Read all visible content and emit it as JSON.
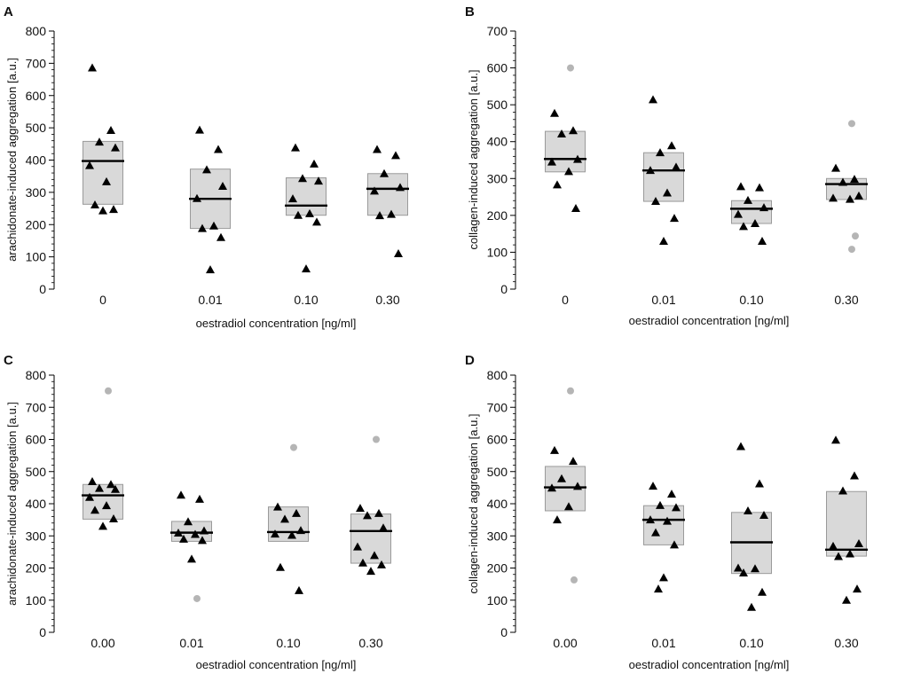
{
  "figure": {
    "background": "#ffffff"
  },
  "style": {
    "box_fill": "#d9d9d9",
    "box_stroke": "#9a9a9a",
    "marker_color": "#000000",
    "outlier_color": "#b5b5b5"
  },
  "chart_data": [
    {
      "panel": "A",
      "type": "box-strip",
      "title": "",
      "xlabel": "oestradiol concentration [ng/ml]",
      "ylabel": "arachidonate-induced aggregation [a.u.]",
      "ylim": [
        0,
        800
      ],
      "yticks": [
        0,
        100,
        200,
        300,
        400,
        500,
        600,
        700,
        800
      ],
      "categories": [
        "0",
        "0.01",
        "0.10",
        "0.30"
      ],
      "groups": [
        {
          "box": [
            263,
            397,
            458
          ],
          "points": [
            686,
            492,
            456,
            438,
            383,
            333,
            261,
            247,
            243
          ],
          "outliers": []
        },
        {
          "box": [
            188,
            280,
            372
          ],
          "points": [
            493,
            433,
            370,
            319,
            281,
            196,
            188,
            160,
            60
          ],
          "outliers": []
        },
        {
          "box": [
            229,
            259,
            345
          ],
          "points": [
            438,
            388,
            343,
            335,
            280,
            234,
            229,
            208,
            63
          ],
          "outliers": []
        },
        {
          "box": [
            229,
            311,
            358
          ],
          "points": [
            433,
            414,
            358,
            315,
            304,
            232,
            228,
            110
          ],
          "outliers": []
        }
      ]
    },
    {
      "panel": "B",
      "type": "box-strip",
      "title": "",
      "xlabel": "oestradiol concentration [ng/ml]",
      "ylabel": "collagen-induced aggregation [a.u.]",
      "ylim": [
        0,
        700
      ],
      "yticks": [
        0,
        100,
        200,
        300,
        400,
        500,
        600,
        700
      ],
      "categories": [
        "0",
        "0.01",
        "0.10",
        "0.30"
      ],
      "groups": [
        {
          "box": [
            318,
            353,
            428
          ],
          "points": [
            477,
            430,
            421,
            352,
            345,
            319,
            283,
            219
          ],
          "outliers": [
            600
          ]
        },
        {
          "box": [
            238,
            322,
            370
          ],
          "points": [
            514,
            389,
            370,
            331,
            322,
            261,
            238,
            192,
            130
          ],
          "outliers": []
        },
        {
          "box": [
            178,
            218,
            240
          ],
          "points": [
            278,
            275,
            241,
            221,
            203,
            178,
            170,
            130
          ],
          "outliers": []
        },
        {
          "box": [
            243,
            285,
            300
          ],
          "points": [
            328,
            298,
            290,
            253,
            247,
            244
          ],
          "outliers": [
            449,
            144,
            108
          ]
        }
      ]
    },
    {
      "panel": "C",
      "type": "box-strip",
      "title": "",
      "xlabel": "oestradiol concentration [ng/ml]",
      "ylabel": "arachidonate-induced aggregation [a.u.]",
      "ylim": [
        0,
        800
      ],
      "yticks": [
        0,
        100,
        200,
        300,
        400,
        500,
        600,
        700,
        800
      ],
      "categories": [
        "0.00",
        "0.01",
        "0.10",
        "0.30"
      ],
      "groups": [
        {
          "box": [
            352,
            426,
            460
          ],
          "points": [
            469,
            460,
            448,
            445,
            420,
            394,
            380,
            353,
            330
          ],
          "outliers": [
            751
          ]
        },
        {
          "box": [
            283,
            310,
            345
          ],
          "points": [
            427,
            414,
            344,
            316,
            309,
            305,
            290,
            286,
            228
          ],
          "outliers": [
            105
          ]
        },
        {
          "box": [
            283,
            312,
            390
          ],
          "points": [
            390,
            370,
            352,
            317,
            306,
            302,
            202,
            130
          ],
          "outliers": [
            575
          ]
        },
        {
          "box": [
            215,
            315,
            368
          ],
          "points": [
            386,
            370,
            363,
            325,
            266,
            239,
            216,
            210,
            190
          ],
          "outliers": [
            600
          ]
        }
      ]
    },
    {
      "panel": "D",
      "type": "box-strip",
      "title": "",
      "xlabel": "oestradiol concentration [ng/ml]",
      "ylabel": "collagen-induced aggregation [a.u.]",
      "ylim": [
        0,
        800
      ],
      "yticks": [
        0,
        100,
        200,
        300,
        400,
        500,
        600,
        700,
        800
      ],
      "categories": [
        "0.00",
        "0.01",
        "0.10",
        "0.30"
      ],
      "groups": [
        {
          "box": [
            378,
            451,
            516
          ],
          "points": [
            566,
            532,
            478,
            454,
            449,
            391,
            350
          ],
          "outliers": [
            751,
            163
          ]
        },
        {
          "box": [
            272,
            350,
            394
          ],
          "points": [
            455,
            430,
            395,
            388,
            350,
            346,
            310,
            272,
            170,
            135
          ],
          "outliers": []
        },
        {
          "box": [
            183,
            280,
            373
          ],
          "points": [
            578,
            462,
            378,
            364,
            200,
            198,
            185,
            125,
            78
          ],
          "outliers": []
        },
        {
          "box": [
            237,
            257,
            438
          ],
          "points": [
            598,
            487,
            440,
            276,
            268,
            244,
            236,
            135,
            100
          ],
          "outliers": []
        }
      ]
    }
  ]
}
